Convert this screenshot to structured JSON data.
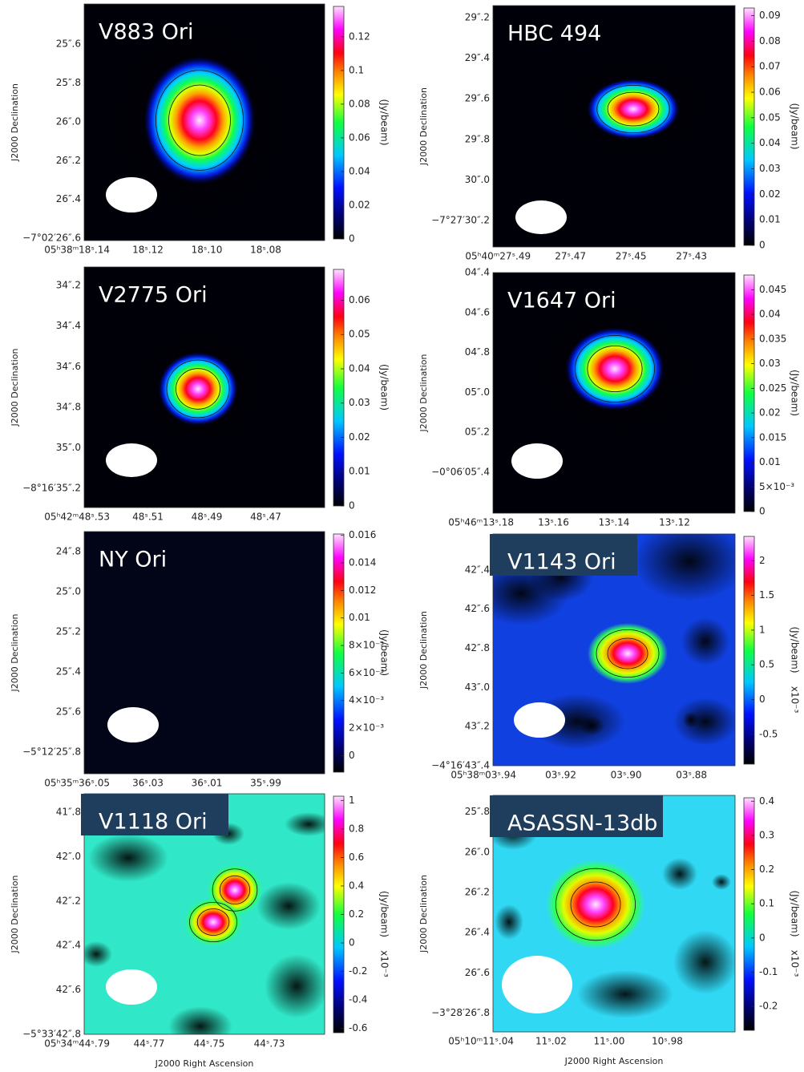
{
  "chart_data": [
    {
      "type": "image",
      "title": "V883 Ori",
      "ylabel": "J2000 Declination",
      "label_box": false,
      "background": "#000008",
      "y_tick_labels": [
        "25″.6",
        "25″.8",
        "26″.0",
        "26″.2",
        "26″.4",
        "−7°02′26″.6"
      ],
      "x_tick_labels": [
        "05ʰ38ᵐ18ˢ.14",
        "18ˢ.12",
        "18ˢ.10",
        "18ˢ.08"
      ],
      "colorbar": {
        "label": "(Jy/beam)",
        "lim": [
          0,
          0.138
        ],
        "ticks": [
          0,
          0.02,
          0.04,
          0.06,
          0.08,
          0.1,
          0.12
        ]
      }
    },
    {
      "type": "image",
      "title": "HBC 494",
      "ylabel": "J2000 Declination",
      "label_box": false,
      "background": "#000008",
      "y_tick_labels": [
        "29″.2",
        "29″.4",
        "29″.6",
        "29″.8",
        "30″.0",
        "−7°27′30″.2"
      ],
      "x_tick_labels": [
        "05ʰ40ᵐ27ˢ.49",
        "27ˢ.47",
        "27ˢ.45",
        "27ˢ.43"
      ],
      "colorbar": {
        "label": "(Jy/beam)",
        "lim": [
          0,
          0.093
        ],
        "ticks": [
          0,
          0.01,
          0.02,
          0.03,
          0.04,
          0.05,
          0.06,
          0.07,
          0.08,
          0.09
        ]
      }
    },
    {
      "type": "image",
      "title": "V2775 Ori",
      "ylabel": "J2000 Declination",
      "label_box": false,
      "background": "#000008",
      "y_tick_labels": [
        "34″.2",
        "34″.4",
        "34″.6",
        "34″.8",
        "35″.0",
        "−8°16′35″.2"
      ],
      "x_tick_labels": [
        "05ʰ42ᵐ48ˢ.53",
        "48ˢ.51",
        "48ˢ.49",
        "48ˢ.47"
      ],
      "colorbar": {
        "label": "(Jy/beam)",
        "lim": [
          0,
          0.069
        ],
        "ticks": [
          0,
          0.01,
          0.02,
          0.03,
          0.04,
          0.05,
          0.06
        ]
      }
    },
    {
      "type": "image",
      "title": "V1647 Ori",
      "ylabel": "J2000 Declination",
      "label_box": false,
      "background": "#000008",
      "y_tick_labels": [
        "04″.4",
        "04″.6",
        "04″.8",
        "05″.0",
        "05″.2",
        "−0°06′05″.4"
      ],
      "x_tick_labels": [
        "05ʰ46ᵐ13ˢ.18",
        "13ˢ.16",
        "13ˢ.14",
        "13ˢ.12"
      ],
      "colorbar": {
        "label": "(Jy/beam)",
        "lim": [
          0,
          0.048
        ],
        "ticks": [
          0,
          {
            "value": 0.005,
            "label": "5×10⁻³"
          },
          0.01,
          0.015,
          0.02,
          0.025,
          0.03,
          0.035,
          0.04,
          0.045
        ]
      }
    },
    {
      "type": "image",
      "title": "NY Ori",
      "ylabel": "J2000 Declination",
      "label_box": false,
      "background": "#020418",
      "y_tick_labels": [
        "24″.8",
        "25″.0",
        "25″.2",
        "25″.4",
        "25″.6",
        "−5°12′25″.8"
      ],
      "x_tick_labels": [
        "05ʰ35ᵐ36ˢ.05",
        "36ˢ.03",
        "36ˢ.01",
        "35ˢ.99"
      ],
      "colorbar": {
        "label": "(Jy/beam)",
        "lim": [
          -0.0012,
          0.0161
        ],
        "ticks": [
          0,
          {
            "value": 0.002,
            "label": "2×10⁻³"
          },
          {
            "value": 0.004,
            "label": "4×10⁻³"
          },
          {
            "value": 0.006,
            "label": "6×10⁻³"
          },
          {
            "value": 0.008,
            "label": "8×10⁻³"
          },
          0.01,
          0.012,
          0.014,
          0.016
        ]
      }
    },
    {
      "type": "image",
      "title": "V1143 Ori",
      "ylabel": "J2000 Declination",
      "label_box": true,
      "background": "#1040e0",
      "y_tick_labels": [
        "42″.4",
        "42″.6",
        "42″.8",
        "43″.0",
        "43″.2",
        "−4°16′43″.4"
      ],
      "x_tick_labels": [
        "05ʰ38ᵐ03ˢ.94",
        "03ˢ.92",
        "03ˢ.90",
        "03ˢ.88"
      ],
      "colorbar": {
        "label": "(Jy/beam)",
        "scale_label": "x10⁻³",
        "lim": [
          -0.93,
          2.35
        ],
        "ticks": [
          -0.5,
          0,
          0.5,
          1,
          1.5,
          2
        ]
      }
    },
    {
      "type": "image",
      "title": "V1118 Ori",
      "ylabel": "J2000 Declination",
      "xlabel": "J2000 Right Ascension",
      "label_box": true,
      "background": "#30e8c8",
      "y_tick_labels": [
        "41″.8",
        "42″.0",
        "42″.2",
        "42″.4",
        "42″.6",
        "−5°33′42″.8"
      ],
      "x_tick_labels": [
        "05ʰ34ᵐ44ˢ.79",
        "44ˢ.77",
        "44ˢ.75",
        "44ˢ.73"
      ],
      "colorbar": {
        "label": "(Jy/beam)",
        "scale_label": "x10⁻³",
        "lim": [
          -0.63,
          1.03
        ],
        "ticks": [
          -0.6,
          -0.4,
          -0.2,
          0,
          0.2,
          0.4,
          0.6,
          0.8,
          1
        ]
      }
    },
    {
      "type": "image",
      "title": "ASASSN-13db",
      "ylabel": "J2000 Declination",
      "xlabel": "J2000 Right Ascension",
      "label_box": true,
      "background": "#30d8f4",
      "y_tick_labels": [
        "25″.8",
        "26″.0",
        "26″.2",
        "26″.4",
        "26″.6",
        "−3°28′26″.8"
      ],
      "x_tick_labels": [
        "05ʰ10ᵐ11ˢ.04",
        "11ˢ.02",
        "11ˢ.00",
        "10ˢ.98"
      ],
      "colorbar": {
        "label": "(Jy/beam)",
        "scale_label": "x10⁻³",
        "lim": [
          -0.27,
          0.41
        ],
        "ticks": [
          -0.2,
          -0.1,
          0,
          0.1,
          0.2,
          0.3,
          0.4
        ]
      }
    }
  ]
}
